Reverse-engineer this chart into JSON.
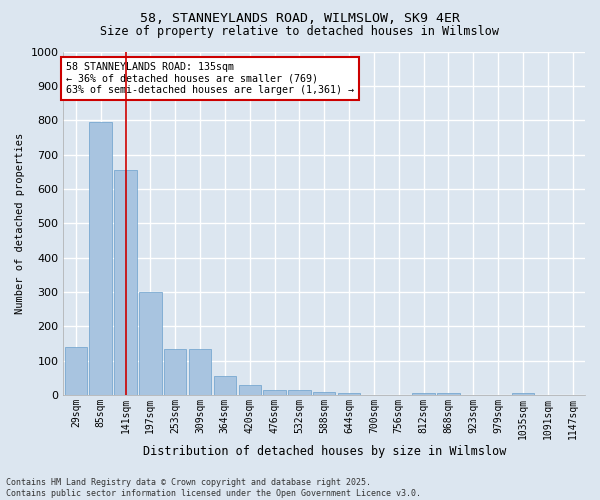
{
  "title1": "58, STANNEYLANDS ROAD, WILMSLOW, SK9 4ER",
  "title2": "Size of property relative to detached houses in Wilmslow",
  "xlabel": "Distribution of detached houses by size in Wilmslow",
  "ylabel": "Number of detached properties",
  "categories": [
    "29sqm",
    "85sqm",
    "141sqm",
    "197sqm",
    "253sqm",
    "309sqm",
    "364sqm",
    "420sqm",
    "476sqm",
    "532sqm",
    "588sqm",
    "644sqm",
    "700sqm",
    "756sqm",
    "812sqm",
    "868sqm",
    "923sqm",
    "979sqm",
    "1035sqm",
    "1091sqm",
    "1147sqm"
  ],
  "values": [
    140,
    795,
    655,
    300,
    135,
    135,
    55,
    28,
    15,
    15,
    10,
    5,
    0,
    0,
    5,
    5,
    0,
    0,
    5,
    0,
    0
  ],
  "bar_color": "#a8c4e0",
  "bar_edge_color": "#6aa0cc",
  "highlight_bar_index": 2,
  "highlight_line_color": "#cc0000",
  "annotation_text": "58 STANNEYLANDS ROAD: 135sqm\n← 36% of detached houses are smaller (769)\n63% of semi-detached houses are larger (1,361) →",
  "annotation_box_color": "#ffffff",
  "annotation_box_edge_color": "#cc0000",
  "ylim": [
    0,
    1000
  ],
  "yticks": [
    0,
    100,
    200,
    300,
    400,
    500,
    600,
    700,
    800,
    900,
    1000
  ],
  "fig_bg_color": "#dce6f0",
  "plot_bg_color": "#dce6f0",
  "grid_color": "#ffffff",
  "footer_line1": "Contains HM Land Registry data © Crown copyright and database right 2025.",
  "footer_line2": "Contains public sector information licensed under the Open Government Licence v3.0."
}
